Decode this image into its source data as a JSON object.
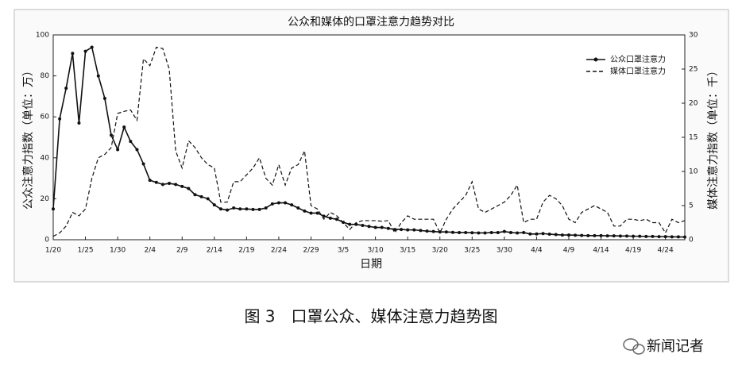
{
  "chart_data": {
    "type": "line",
    "title": "公众和媒体的口罩注意力趋势对比",
    "x_label": "日期",
    "y_label": "公众注意力指数（单位：万）",
    "y2_label": "媒体注意力指数（单位：千）",
    "categories": [
      "1/20",
      null,
      null,
      null,
      null,
      "1/25",
      null,
      null,
      null,
      null,
      "1/30",
      null,
      null,
      null,
      null,
      "2/4",
      null,
      null,
      null,
      null,
      "2/9",
      null,
      null,
      null,
      null,
      "2/14",
      null,
      null,
      null,
      null,
      "2/19",
      null,
      null,
      null,
      null,
      "2/24",
      null,
      null,
      null,
      null,
      "2/29",
      null,
      null,
      null,
      null,
      "3/5",
      null,
      null,
      null,
      null,
      "3/10",
      null,
      null,
      null,
      null,
      "3/15",
      null,
      null,
      null,
      null,
      "3/20",
      null,
      null,
      null,
      null,
      "3/25",
      null,
      null,
      null,
      null,
      "3/30",
      null,
      null,
      null,
      null,
      "4/4",
      null,
      null,
      null,
      null,
      "4/9",
      null,
      null,
      null,
      null,
      "4/14",
      null,
      null,
      null,
      null,
      "4/19",
      null,
      null,
      null,
      null,
      "4/24",
      null,
      null,
      null
    ],
    "series": [
      {
        "name": "公众口罩注意力",
        "color": "#111111",
        "dash": false,
        "markers": true,
        "axis": "y",
        "values": [
          15,
          59,
          74,
          91,
          57,
          92,
          94,
          80,
          69,
          51,
          44,
          55,
          48,
          44,
          37,
          29,
          28,
          27,
          27.5,
          27,
          26,
          25,
          22,
          21,
          20,
          17,
          15,
          14.5,
          15.5,
          15,
          15,
          14.8,
          14.8,
          15.5,
          17.5,
          18,
          18,
          17,
          15.5,
          14,
          13,
          13,
          11.5,
          10.5,
          10,
          8.5,
          7.5,
          7.5,
          7,
          6.5,
          6,
          6,
          5.5,
          5,
          5,
          4.8,
          4.8,
          4.5,
          4.2,
          4,
          3.8,
          3.8,
          3.6,
          3.5,
          3.5,
          3.4,
          3.3,
          3.3,
          3.5,
          3.5,
          4,
          3.5,
          3.3,
          3.5,
          2.8,
          2.8,
          3,
          2.7,
          2.5,
          2.3,
          2.3,
          2.2,
          2.1,
          2,
          2,
          2,
          1.9,
          1.9,
          1.8,
          1.8,
          1.7,
          1.7,
          1.6,
          1.6,
          1.5,
          1.5,
          1.4,
          1.4,
          1.3
        ]
      },
      {
        "name": "媒体口罩注意力",
        "color": "#111111",
        "dash": true,
        "markers": false,
        "axis": "y2",
        "values": [
          0.5,
          1,
          2,
          4,
          3.5,
          4.5,
          9,
          12,
          12.5,
          13.5,
          18.5,
          18.8,
          19,
          17.5,
          26.5,
          25.5,
          28.2,
          28,
          25,
          13,
          10.5,
          14.5,
          13.5,
          12,
          11,
          10.5,
          5.5,
          5.5,
          8.5,
          8.5,
          9.5,
          10.5,
          12,
          9,
          8,
          11,
          8,
          10.5,
          11,
          13,
          5,
          4.5,
          3,
          4,
          3.5,
          2.5,
          1.5,
          2.5,
          2.8,
          2.8,
          2.8,
          2.7,
          2.8,
          1,
          2.5,
          3.5,
          3,
          3,
          3,
          3,
          1,
          3,
          4.5,
          5.5,
          6.5,
          8.5,
          4.5,
          4,
          4.5,
          5,
          5.5,
          6.5,
          8,
          2.5,
          3,
          3,
          5.5,
          6.5,
          6,
          5,
          3,
          2.5,
          4,
          4.5,
          5,
          4.5,
          4,
          2,
          2,
          3,
          3,
          2.8,
          3,
          2.5,
          2.5,
          1,
          3,
          2.5,
          2.8
        ]
      }
    ],
    "ylim": [
      0,
      100
    ],
    "yticks": [
      0,
      20,
      40,
      60,
      80,
      100
    ],
    "y2lim": [
      0,
      30
    ],
    "y2ticks": [
      0,
      5,
      10,
      15,
      20,
      25,
      30
    ],
    "legend": "upper right",
    "grid": false
  },
  "caption": "图 3　口罩公众、媒体注意力趋势图",
  "watermark": "新闻记者"
}
